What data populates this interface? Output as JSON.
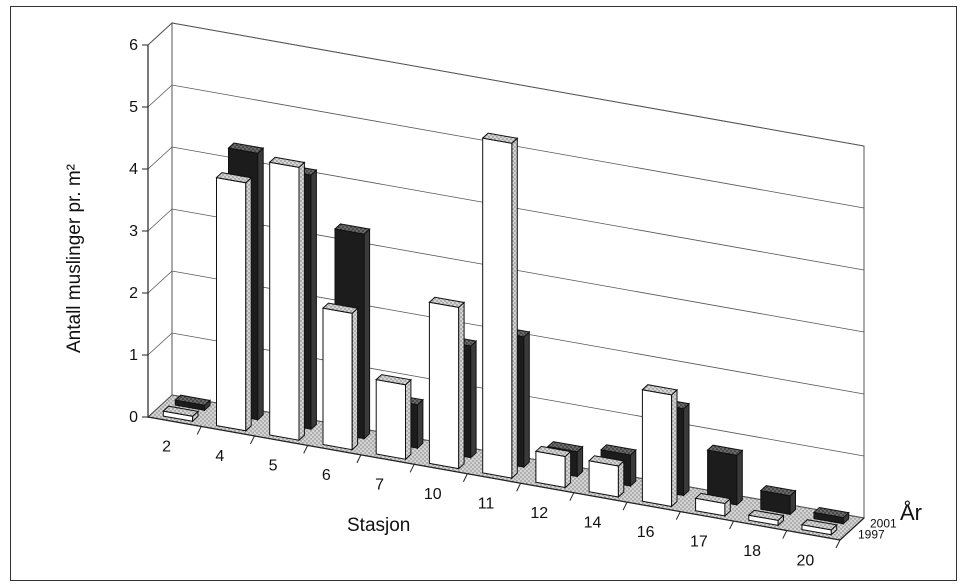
{
  "chart_data": {
    "type": "bar",
    "variant": "3d-column",
    "categories": [
      "2",
      "4",
      "5",
      "6",
      "7",
      "10",
      "11",
      "12",
      "14",
      "16",
      "17",
      "18",
      "20"
    ],
    "series": [
      {
        "name": "1997",
        "values": [
          0,
          4,
          4.4,
          2.2,
          1.2,
          2.6,
          5.4,
          0.5,
          0.5,
          1.8,
          0.2,
          0,
          0
        ],
        "color": "#ffffff"
      },
      {
        "name": "2001",
        "values": [
          0,
          4.3,
          4.1,
          3.3,
          0.7,
          1.8,
          2.1,
          0.4,
          0.5,
          1.4,
          0.8,
          0.3,
          0.1
        ],
        "color": "#1a1a1a"
      }
    ],
    "y_ticks": [
      "0",
      "1",
      "2",
      "3",
      "4",
      "5",
      "6"
    ],
    "ylim": [
      0,
      6
    ],
    "xlabel": "Stasjon",
    "ylabel": "Antall muslinger pr. m²",
    "zlabel": "År",
    "grid": true,
    "legend_placement": "right (depth axis)"
  }
}
